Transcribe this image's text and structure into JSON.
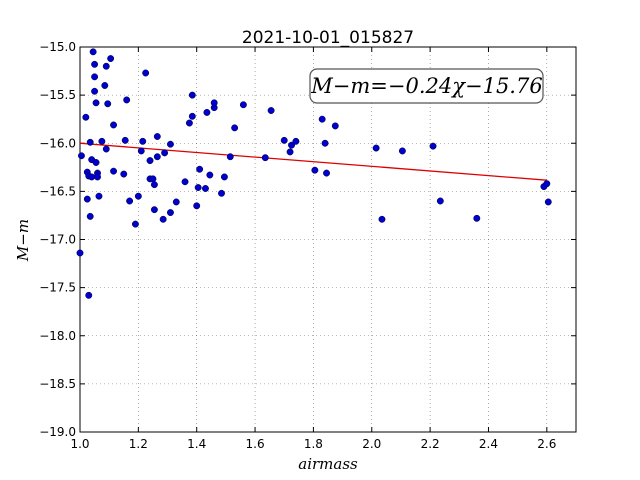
{
  "chart_data": {
    "type": "scatter",
    "title": "2021-10-01_015827",
    "xlabel": "airmass",
    "ylabel": "M−m",
    "xlim": [
      1.0,
      2.7
    ],
    "ylim": [
      -19.0,
      -15.0
    ],
    "xticks": [
      1.0,
      1.2,
      1.4,
      1.6,
      1.8,
      2.0,
      2.2,
      2.4,
      2.6
    ],
    "xtick_labels": [
      "1.0",
      "1.2",
      "1.4",
      "1.6",
      "1.8",
      "2.0",
      "2.2",
      "2.4",
      "2.6"
    ],
    "yticks": [
      -15.0,
      -15.5,
      -16.0,
      -16.5,
      -17.0,
      -17.5,
      -18.0,
      -18.5,
      -19.0
    ],
    "ytick_labels": [
      "−15.0",
      "−15.5",
      "−16.0",
      "−16.5",
      "−17.0",
      "−17.5",
      "−18.0",
      "−18.5",
      "−19.0"
    ],
    "grid": true,
    "annotation": "M−m=−0.24χ−15.76",
    "fit": {
      "slope": -0.24,
      "intercept": -15.76,
      "x_range": [
        1.0,
        2.6
      ]
    },
    "points_color": "#0000cc",
    "fit_color": "#dd0000",
    "points": [
      {
        "x": 1.0,
        "y": -17.14
      },
      {
        "x": 1.005,
        "y": -16.13
      },
      {
        "x": 1.02,
        "y": -15.73
      },
      {
        "x": 1.025,
        "y": -16.3
      },
      {
        "x": 1.025,
        "y": -16.58
      },
      {
        "x": 1.03,
        "y": -16.34
      },
      {
        "x": 1.03,
        "y": -17.58
      },
      {
        "x": 1.035,
        "y": -15.99
      },
      {
        "x": 1.035,
        "y": -16.76
      },
      {
        "x": 1.04,
        "y": -16.35
      },
      {
        "x": 1.04,
        "y": -16.17
      },
      {
        "x": 1.045,
        "y": -15.05
      },
      {
        "x": 1.05,
        "y": -15.18
      },
      {
        "x": 1.05,
        "y": -15.31
      },
      {
        "x": 1.05,
        "y": -15.46
      },
      {
        "x": 1.055,
        "y": -15.58
      },
      {
        "x": 1.055,
        "y": -16.2
      },
      {
        "x": 1.06,
        "y": -16.31
      },
      {
        "x": 1.06,
        "y": -16.35
      },
      {
        "x": 1.065,
        "y": -16.55
      },
      {
        "x": 1.075,
        "y": -15.98
      },
      {
        "x": 1.085,
        "y": -15.4
      },
      {
        "x": 1.09,
        "y": -15.2
      },
      {
        "x": 1.09,
        "y": -16.06
      },
      {
        "x": 1.095,
        "y": -15.59
      },
      {
        "x": 1.105,
        "y": -15.12
      },
      {
        "x": 1.115,
        "y": -15.81
      },
      {
        "x": 1.115,
        "y": -16.29
      },
      {
        "x": 1.15,
        "y": -16.32
      },
      {
        "x": 1.155,
        "y": -15.97
      },
      {
        "x": 1.16,
        "y": -15.55
      },
      {
        "x": 1.17,
        "y": -16.6
      },
      {
        "x": 1.19,
        "y": -16.84
      },
      {
        "x": 1.2,
        "y": -16.55
      },
      {
        "x": 1.21,
        "y": -16.08
      },
      {
        "x": 1.215,
        "y": -15.98
      },
      {
        "x": 1.225,
        "y": -15.27
      },
      {
        "x": 1.24,
        "y": -16.37
      },
      {
        "x": 1.24,
        "y": -16.18
      },
      {
        "x": 1.25,
        "y": -16.37
      },
      {
        "x": 1.255,
        "y": -16.43
      },
      {
        "x": 1.255,
        "y": -16.69
      },
      {
        "x": 1.265,
        "y": -16.14
      },
      {
        "x": 1.265,
        "y": -15.93
      },
      {
        "x": 1.285,
        "y": -16.79
      },
      {
        "x": 1.29,
        "y": -16.1
      },
      {
        "x": 1.31,
        "y": -16.72
      },
      {
        "x": 1.31,
        "y": -16.01
      },
      {
        "x": 1.33,
        "y": -16.61
      },
      {
        "x": 1.36,
        "y": -16.4
      },
      {
        "x": 1.375,
        "y": -15.79
      },
      {
        "x": 1.385,
        "y": -15.72
      },
      {
        "x": 1.385,
        "y": -15.5
      },
      {
        "x": 1.4,
        "y": -16.65
      },
      {
        "x": 1.405,
        "y": -16.46
      },
      {
        "x": 1.41,
        "y": -16.27
      },
      {
        "x": 1.43,
        "y": -16.47
      },
      {
        "x": 1.435,
        "y": -15.68
      },
      {
        "x": 1.445,
        "y": -16.33
      },
      {
        "x": 1.46,
        "y": -15.63
      },
      {
        "x": 1.46,
        "y": -15.58
      },
      {
        "x": 1.485,
        "y": -16.52
      },
      {
        "x": 1.495,
        "y": -16.35
      },
      {
        "x": 1.515,
        "y": -16.14
      },
      {
        "x": 1.53,
        "y": -15.84
      },
      {
        "x": 1.56,
        "y": -15.6
      },
      {
        "x": 1.635,
        "y": -16.15
      },
      {
        "x": 1.655,
        "y": -15.66
      },
      {
        "x": 1.7,
        "y": -15.97
      },
      {
        "x": 1.72,
        "y": -16.09
      },
      {
        "x": 1.725,
        "y": -16.02
      },
      {
        "x": 1.74,
        "y": -15.98
      },
      {
        "x": 1.805,
        "y": -16.28
      },
      {
        "x": 1.83,
        "y": -15.75
      },
      {
        "x": 1.84,
        "y": -16.0
      },
      {
        "x": 1.845,
        "y": -16.31
      },
      {
        "x": 1.875,
        "y": -15.82
      },
      {
        "x": 2.015,
        "y": -16.05
      },
      {
        "x": 2.035,
        "y": -16.79
      },
      {
        "x": 2.105,
        "y": -16.08
      },
      {
        "x": 2.21,
        "y": -16.03
      },
      {
        "x": 2.235,
        "y": -16.6
      },
      {
        "x": 2.36,
        "y": -16.78
      },
      {
        "x": 2.59,
        "y": -16.45
      },
      {
        "x": 2.6,
        "y": -16.42
      },
      {
        "x": 2.605,
        "y": -16.61
      }
    ]
  }
}
